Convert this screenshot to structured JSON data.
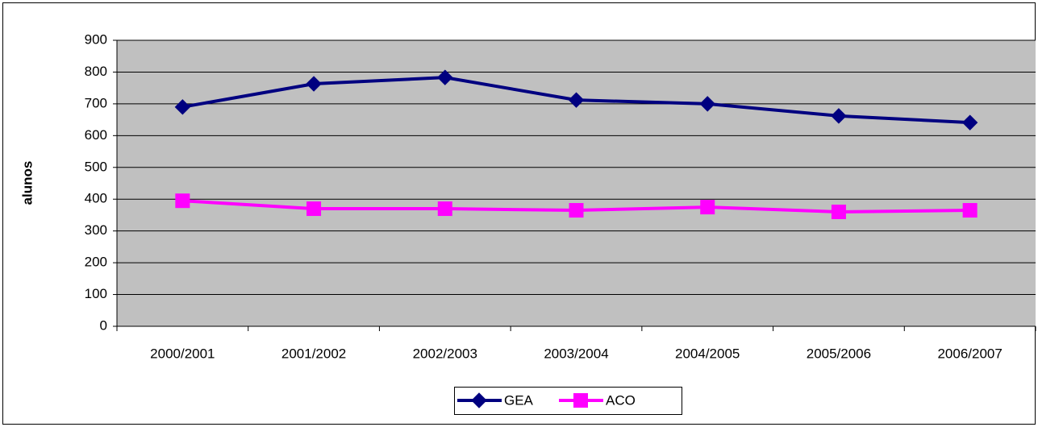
{
  "chart_data": {
    "type": "line",
    "y_label": "alunos",
    "categories": [
      "2000/2001",
      "2001/2002",
      "2002/2003",
      "2003/2004",
      "2004/2005",
      "2005/2006",
      "2006/2007"
    ],
    "series": [
      {
        "name": "GEA",
        "color": "#000080",
        "marker": "diamond",
        "values": [
          690,
          763,
          783,
          712,
          700,
          662,
          641
        ]
      },
      {
        "name": "ACO",
        "color": "#ff00ff",
        "marker": "square",
        "values": [
          395,
          370,
          370,
          365,
          375,
          360,
          365
        ]
      }
    ],
    "ylim": [
      0,
      900
    ],
    "yticks": [
      0,
      100,
      200,
      300,
      400,
      500,
      600,
      700,
      800,
      900
    ],
    "grid": true,
    "legend": "bottom"
  }
}
